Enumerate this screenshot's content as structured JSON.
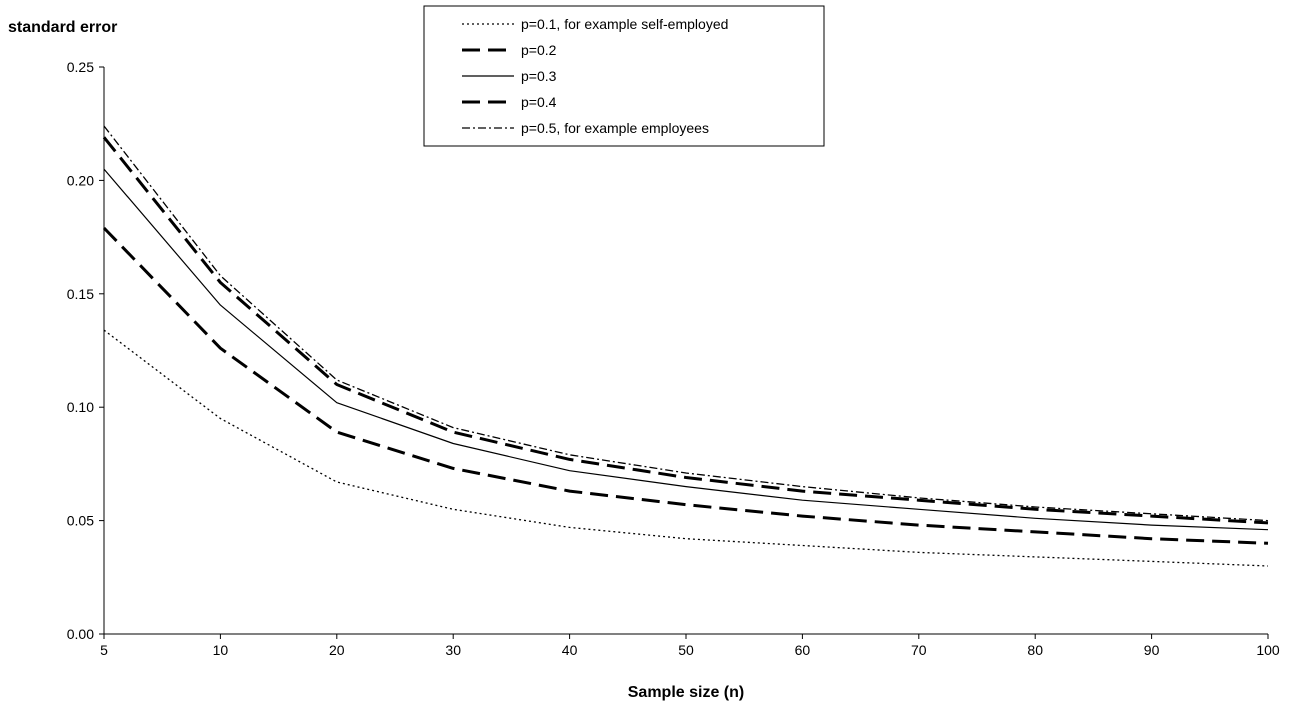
{
  "chart_data": {
    "type": "line",
    "ylabel": "standard error",
    "xlabel": "Sample size (n)",
    "categories": [
      "5",
      "10",
      "20",
      "30",
      "40",
      "50",
      "60",
      "70",
      "80",
      "90",
      "100"
    ],
    "ylim": [
      0,
      0.25
    ],
    "yticks": [
      "0.00",
      "0.05",
      "0.10",
      "0.15",
      "0.20",
      "0.25"
    ],
    "grid": false,
    "legend_position": "top-center",
    "series": [
      {
        "name": "p=0.1, for example self-employed",
        "style": "dotted",
        "color": "#000000",
        "values": [
          0.134,
          0.095,
          0.067,
          0.055,
          0.047,
          0.042,
          0.039,
          0.036,
          0.034,
          0.032,
          0.03
        ]
      },
      {
        "name": "p=0.2",
        "style": "long-dash",
        "color": "#000000",
        "values": [
          0.179,
          0.126,
          0.089,
          0.073,
          0.063,
          0.057,
          0.052,
          0.048,
          0.045,
          0.042,
          0.04
        ]
      },
      {
        "name": "p=0.3",
        "style": "solid",
        "color": "#000000",
        "values": [
          0.205,
          0.145,
          0.102,
          0.084,
          0.072,
          0.065,
          0.059,
          0.055,
          0.051,
          0.048,
          0.046
        ]
      },
      {
        "name": "p=0.4",
        "style": "long-dash",
        "color": "#000000",
        "values": [
          0.219,
          0.155,
          0.11,
          0.089,
          0.077,
          0.069,
          0.063,
          0.059,
          0.055,
          0.052,
          0.049
        ]
      },
      {
        "name": "p=0.5, for example employees",
        "style": "dash-dot",
        "color": "#000000",
        "values": [
          0.224,
          0.158,
          0.112,
          0.091,
          0.079,
          0.071,
          0.065,
          0.06,
          0.056,
          0.053,
          0.05
        ]
      }
    ]
  }
}
